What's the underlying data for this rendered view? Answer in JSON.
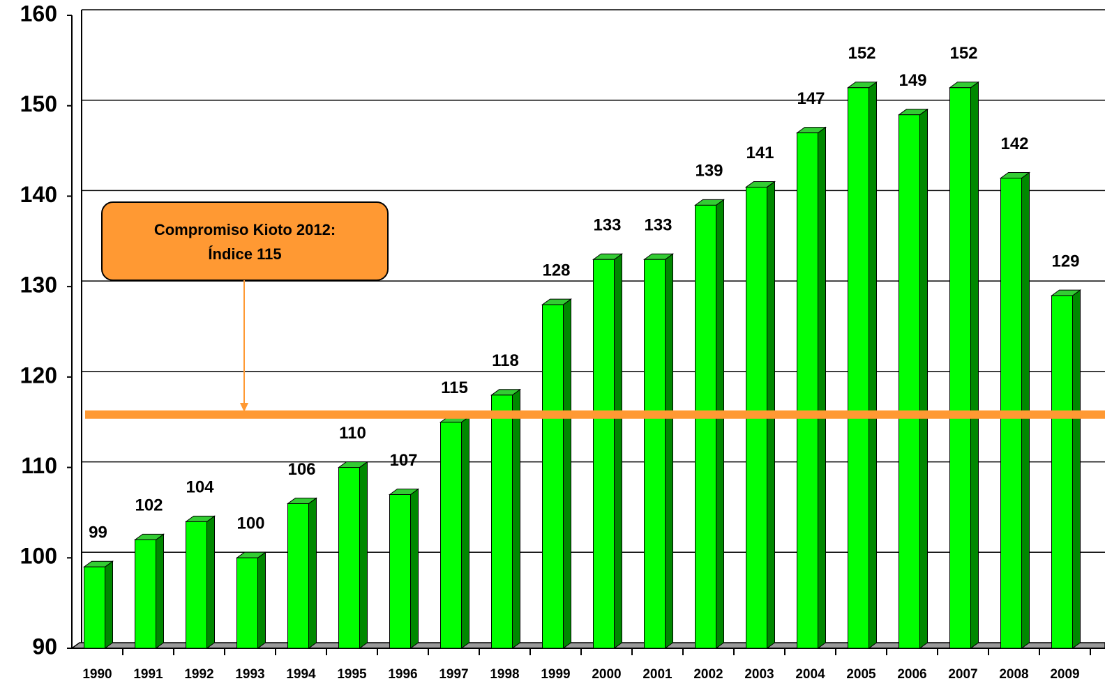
{
  "chart_data": {
    "type": "bar",
    "categories": [
      "1990",
      "1991",
      "1992",
      "1993",
      "1994",
      "1995",
      "1996",
      "1997",
      "1998",
      "1999",
      "2000",
      "2001",
      "2002",
      "2003",
      "2004",
      "2005",
      "2006",
      "2007",
      "2008",
      "2009"
    ],
    "values": [
      99,
      102,
      104,
      100,
      106,
      110,
      107,
      115,
      118,
      128,
      133,
      133,
      139,
      141,
      147,
      152,
      149,
      152,
      142,
      129
    ],
    "color": "#00ff00",
    "ylim": [
      90,
      160
    ],
    "yticks": [
      90,
      100,
      110,
      120,
      130,
      140,
      150,
      160
    ],
    "grid": true,
    "reference_line": {
      "value": 115,
      "color": "#ff9933"
    },
    "annotation": [
      "Compromiso Kioto 2012:",
      "Índice 115"
    ]
  }
}
